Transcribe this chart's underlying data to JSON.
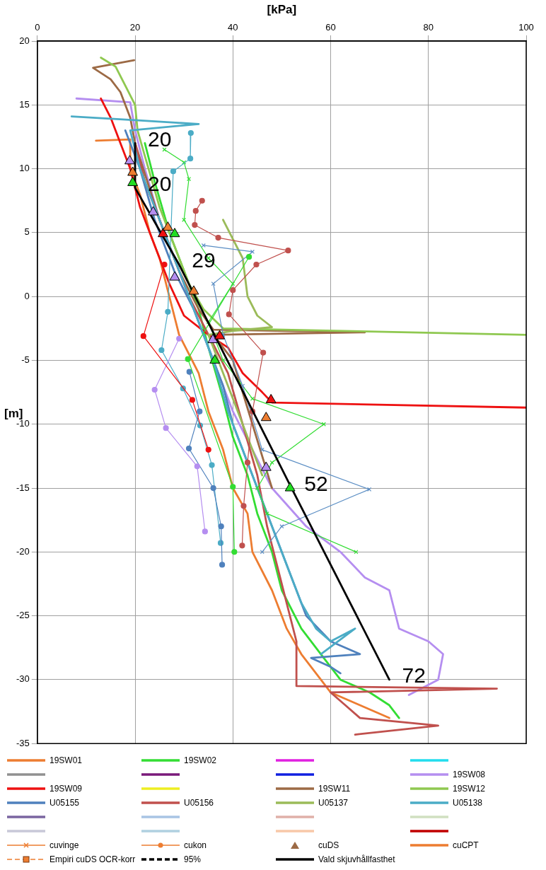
{
  "chart_data": {
    "type": "line",
    "xlabel": "[kPa]",
    "ylabel": "[m]",
    "xlim": [
      0,
      100
    ],
    "xticks": [
      0,
      20,
      40,
      60,
      80,
      100
    ],
    "ylim": [
      -35,
      20
    ],
    "yticks": [
      -35,
      -30,
      -25,
      -20,
      -15,
      -10,
      -5,
      0,
      5,
      10,
      15,
      20
    ],
    "grid": true,
    "legend": "bottom",
    "marker": "none",
    "line_style": "solid",
    "annotations": [
      {
        "text": "20",
        "x": 20,
        "y": 12
      },
      {
        "text": "20",
        "x": 20,
        "y": 8.5
      },
      {
        "text": "29",
        "x": 29,
        "y": 2.5
      },
      {
        "text": "52",
        "x": 52,
        "y": -15
      },
      {
        "text": "72",
        "x": 72,
        "y": -30
      }
    ],
    "series": [
      {
        "name": "19SW01",
        "color": "#ed7d31",
        "x": [
          12,
          19,
          19,
          21,
          23,
          25,
          27,
          29,
          33,
          35,
          38,
          40,
          43,
          44,
          48,
          51,
          54,
          58,
          60,
          66,
          72
        ],
        "values": [
          12.2,
          12.3,
          10,
          8,
          5,
          3,
          0,
          -3,
          -6,
          -9,
          -12,
          -15,
          -17,
          -20,
          -23,
          -26,
          -28,
          -30,
          -31,
          -32,
          -33
        ]
      },
      {
        "name": "19SW02",
        "color": "#33dd33",
        "x": [
          22,
          24,
          27,
          30,
          33,
          35,
          38,
          40,
          43,
          45,
          48,
          50,
          54,
          58,
          62,
          68,
          72,
          74
        ],
        "values": [
          12,
          9,
          5,
          2,
          -1,
          -4,
          -8,
          -11,
          -14,
          -17,
          -20,
          -23,
          -26,
          -28,
          -30,
          -31,
          -32,
          -33
        ]
      },
      {
        "color": "#e020e0"
      },
      {
        "color": "#22ddee"
      },
      {
        "color": "#909090"
      },
      {
        "color": "#7a1a7a"
      },
      {
        "color": "#1020e0"
      },
      {
        "name": "19SW08",
        "color": "#b58ef0",
        "x": [
          8,
          19,
          20,
          22,
          25,
          28,
          31,
          34,
          37,
          40,
          44,
          48,
          55,
          62,
          67,
          72,
          74,
          80,
          83,
          82,
          76
        ],
        "values": [
          15.5,
          15.2,
          13,
          10,
          6,
          3,
          0,
          -3,
          -6,
          -9,
          -12,
          -15,
          -18,
          -20,
          -22,
          -23,
          -26,
          -27,
          -28,
          -30,
          -31.2
        ]
      },
      {
        "name": "19SW09",
        "color": "#ee1111",
        "x": [
          13,
          15,
          17,
          19,
          21,
          24,
          27,
          30,
          35,
          39,
          42,
          46,
          48,
          100
        ],
        "values": [
          15.5,
          14,
          12,
          10,
          7,
          4,
          1,
          -1.5,
          -3,
          -4,
          -6,
          -7.5,
          -8.3,
          -8.7
        ]
      },
      {
        "color": "#eeee22"
      },
      {
        "name": "19SW11",
        "color": "#9c6a45",
        "x": [
          19.8,
          11.4,
          15,
          17,
          19,
          20,
          25,
          29,
          33,
          36,
          67,
          36,
          40,
          44,
          48
        ],
        "values": [
          18.5,
          17.9,
          17,
          16,
          14,
          12,
          6,
          2,
          -1,
          -2.6,
          -2.8,
          -3,
          -5,
          -10,
          -15
        ]
      },
      {
        "name": "19SW12",
        "color": "#8fc850",
        "x": [
          13,
          16,
          18,
          20,
          20.5,
          22,
          25,
          28,
          31,
          34,
          38,
          100
        ],
        "values": [
          18.7,
          18,
          16.5,
          15,
          13,
          11,
          7,
          4,
          1,
          -1,
          -2.5,
          -3
        ]
      },
      {
        "name": "U05155",
        "color": "#4f81bd",
        "x": [
          18,
          21,
          24,
          28,
          32,
          35,
          38,
          40,
          43,
          46,
          49,
          52,
          55,
          60,
          66,
          56,
          60,
          62
        ],
        "values": [
          13,
          10,
          6,
          2,
          -1,
          -4,
          -7,
          -10,
          -13,
          -16,
          -19,
          -22,
          -25,
          -27,
          -28,
          -28.3,
          -29,
          -29.5
        ]
      },
      {
        "name": "U05156",
        "color": "#c0504d",
        "x": [
          20,
          22,
          25,
          28,
          31,
          35,
          39,
          42,
          45,
          47,
          49,
          51,
          53,
          53,
          94,
          60,
          63,
          66,
          82,
          65
        ],
        "values": [
          12,
          9,
          6,
          3,
          0,
          -3,
          -6,
          -10,
          -14,
          -18,
          -21,
          -24,
          -27,
          -30.5,
          -30.7,
          -31,
          -32,
          -33,
          -33.6,
          -34.3
        ]
      },
      {
        "name": "U05137",
        "color": "#9bbb59",
        "x": [
          38,
          42,
          43,
          45,
          48,
          40,
          35,
          38,
          42,
          46
        ],
        "values": [
          6,
          3,
          0,
          -1.5,
          -2.4,
          -2.7,
          -3,
          -6,
          -10,
          -14
        ]
      },
      {
        "name": "U05138",
        "color": "#4bacc6",
        "x": [
          7,
          20,
          33,
          19,
          21,
          24,
          27,
          30,
          33,
          36,
          39,
          42,
          45,
          48,
          51,
          54,
          57,
          60,
          65,
          58
        ],
        "values": [
          14.1,
          13.8,
          13.5,
          13,
          10,
          7,
          4,
          1,
          -2,
          -5,
          -9,
          -12,
          -15,
          -18,
          -21,
          -24,
          -26,
          -27,
          -26,
          -28
        ]
      },
      {
        "color": "#7a65a0"
      },
      {
        "color": "#a8c4e4"
      },
      {
        "color": "#e0b0a8"
      },
      {
        "color": "#d0e0c0"
      },
      {
        "color": "#c8c8d8"
      },
      {
        "color": "#b0d0e0"
      },
      {
        "color": "#f8c8a8"
      },
      {
        "color": "#c00000"
      },
      {
        "name": "cuvinge",
        "color": "#ed7d31",
        "marker": "cross"
      },
      {
        "name": "cukon",
        "color": "#ed7d31",
        "marker": "circle"
      },
      {
        "name": "cuDS",
        "type": "scatter",
        "color": "#9c6a45",
        "marker": "triangle"
      },
      {
        "name": "cuCPT",
        "color": "#ed7d31"
      },
      {
        "color": "#33dd33",
        "marker": "cross",
        "x": [
          26,
          30,
          31,
          30,
          35,
          40,
          35,
          38,
          44,
          58.6,
          48,
          45,
          47,
          65.2
        ],
        "values": [
          11.5,
          10.5,
          9.2,
          6,
          3,
          1,
          -2,
          -5,
          -8,
          -10,
          -13,
          -15,
          -17,
          -20
        ]
      },
      {
        "color": "#5b8ec4",
        "marker": "cross",
        "x": [
          34,
          44,
          36,
          38,
          42,
          46,
          67.9,
          50,
          46
        ],
        "values": [
          4,
          3.5,
          1,
          -3,
          -7,
          -12,
          -15.1,
          -18,
          -20
        ]
      },
      {
        "color": "#c0504d",
        "marker": "circle",
        "x": [
          33.7,
          32.4,
          32.2,
          37,
          51.3,
          44.8,
          40,
          39.2,
          46.2,
          44,
          43,
          42.2,
          41.9
        ],
        "values": [
          7.5,
          6.7,
          5.6,
          4.6,
          3.6,
          2.5,
          0.5,
          -1.4,
          -4.4,
          -9,
          -13,
          -16.4,
          -19.5
        ]
      },
      {
        "color": "#4bacc6",
        "marker": "circle",
        "x": [
          31.4,
          31.3,
          27.8,
          26.7,
          25.4,
          29.8,
          33.3,
          35.7,
          37.5
        ],
        "values": [
          12.8,
          10.8,
          9.8,
          -1.2,
          -4.2,
          -7.2,
          -10.1,
          -13.2,
          -19.3
        ]
      },
      {
        "color": "#4f81bd",
        "marker": "circle",
        "x": [
          31.1,
          33.2,
          31,
          36,
          37.6,
          37.8
        ],
        "values": [
          -5.9,
          -9,
          -11.9,
          -15,
          -18,
          -21
        ]
      },
      {
        "color": "#b58ef0",
        "marker": "circle",
        "x": [
          29,
          24,
          26.3,
          32.7,
          34.3
        ],
        "values": [
          -3.3,
          -7.3,
          -10.3,
          -13.3,
          -18.4
        ]
      },
      {
        "color": "#ee1111",
        "marker": "circle",
        "x": [
          26,
          21.7,
          31.7,
          35
        ],
        "values": [
          2.5,
          -3.1,
          -8.1,
          -12
        ]
      },
      {
        "color": "#33dd33",
        "marker": "circle",
        "x": [
          43.3,
          30.8,
          40,
          40.3
        ],
        "values": [
          3.1,
          -4.9,
          -14.9,
          -20
        ]
      },
      {
        "name": "Empiri cuDS OCR-korr",
        "color": "#ed7d31",
        "marker": "square",
        "line_style": "dashed"
      },
      {
        "name": "95%",
        "color": "#000000",
        "line_style": "dashed"
      },
      {
        "name": "Vald skjuvhållfasthet",
        "color": "#000000",
        "x": [
          20,
          20,
          29,
          52,
          72
        ],
        "values": [
          12,
          8.5,
          2.5,
          -15,
          -30
        ]
      },
      {
        "type": "scatter",
        "color": "#b58ef0",
        "marker": "triangle",
        "x": [
          18.9,
          23.7,
          28.1,
          35.9,
          46.8
        ],
        "values": [
          10.6,
          6.6,
          1.5,
          -3.4,
          -13.4
        ]
      },
      {
        "type": "scatter",
        "color": "#22dd22",
        "marker": "triangle",
        "x": [
          19.5,
          28.1,
          36.3,
          51.7
        ],
        "values": [
          8.9,
          4.9,
          -5,
          -15
        ]
      },
      {
        "type": "scatter",
        "color": "#ee1111",
        "marker": "triangle",
        "x": [
          25.7,
          37.3,
          47.8
        ],
        "values": [
          4.9,
          -3.1,
          -8.1
        ]
      },
      {
        "type": "scatter",
        "color": "#ed7d31",
        "marker": "triangle",
        "x": [
          19.5,
          26.7,
          32,
          46.8
        ],
        "values": [
          9.7,
          5.4,
          0.4,
          -9.5
        ]
      }
    ]
  }
}
